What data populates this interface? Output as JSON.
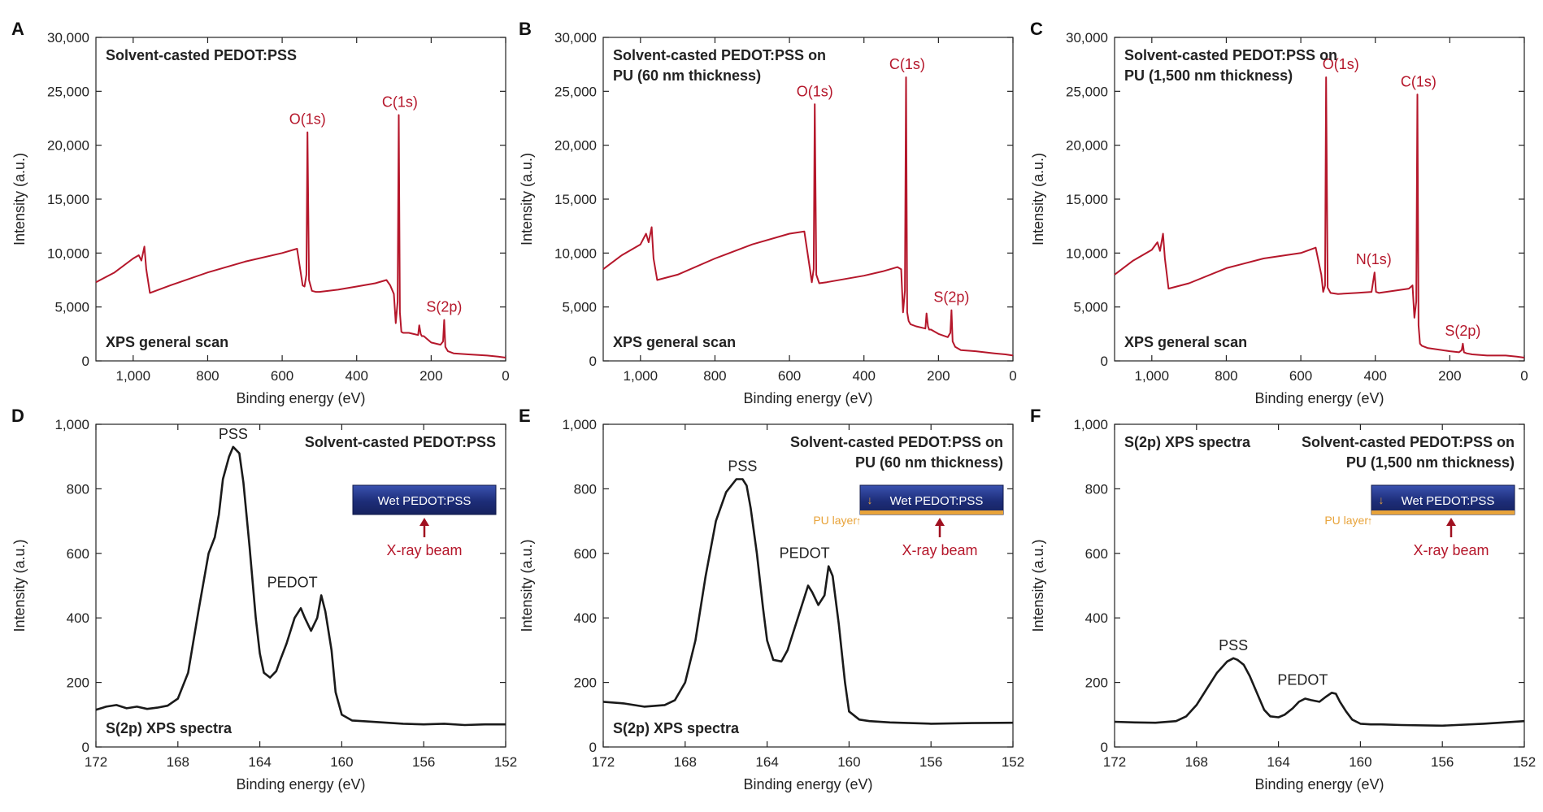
{
  "colors": {
    "xps_curve": "#b5172b",
    "peak_label": "#b5172b",
    "s2p_curve": "#1a1a1a",
    "pedot_bar_dark": "#1d2d78",
    "pedot_bar_light": "#3a52b0",
    "pu_layer": "#e8a33a",
    "xray_arrow": "#a01020",
    "axis": "#222222"
  },
  "chart_data": [
    {
      "panel": "A",
      "type": "line",
      "title": "Solvent-casted PEDOT:PSS",
      "annotation": "XPS general scan",
      "xlabel": "Binding energy (eV)",
      "ylabel": "Intensity (a.u.)",
      "xlim": [
        1100,
        0
      ],
      "ylim": [
        0,
        30000
      ],
      "xticks": [
        1000,
        800,
        600,
        400,
        200,
        0
      ],
      "xtick_labels": [
        "1,000",
        "800",
        "600",
        "400",
        "200",
        "0"
      ],
      "yticks": [
        0,
        5000,
        10000,
        15000,
        20000,
        25000,
        30000
      ],
      "ytick_labels": [
        "0",
        "5,000",
        "10,000",
        "15,000",
        "20,000",
        "25,000",
        "30,000"
      ],
      "series": [
        {
          "x": [
            1100,
            1050,
            1000,
            985,
            978,
            970,
            965,
            955,
            900,
            800,
            700,
            600,
            560,
            545,
            540,
            535,
            532,
            528,
            520,
            510,
            500,
            450,
            400,
            350,
            320,
            310,
            300,
            295,
            290,
            287,
            284,
            280,
            275,
            260,
            235,
            232,
            228,
            225,
            220,
            200,
            175,
            168,
            165,
            162,
            155,
            140,
            100,
            50,
            20,
            0
          ],
          "y": [
            7300,
            8200,
            9500,
            9800,
            9300,
            10600,
            8500,
            6300,
            7000,
            8200,
            9200,
            10000,
            10400,
            7000,
            6900,
            8000,
            21200,
            7500,
            6500,
            6400,
            6400,
            6600,
            6900,
            7200,
            7500,
            7000,
            6200,
            3500,
            5500,
            22800,
            4500,
            2700,
            2600,
            2600,
            2400,
            3300,
            2500,
            2300,
            2300,
            1700,
            1500,
            1800,
            3800,
            1300,
            900,
            700,
            600,
            500,
            400,
            300
          ]
        }
      ],
      "annotations": [
        {
          "text": "O(1s)",
          "x": 532,
          "y": 21200
        },
        {
          "text": "C(1s)",
          "x": 284,
          "y": 22800
        },
        {
          "text": "S(2p)",
          "x": 165,
          "y": 3800
        }
      ]
    },
    {
      "panel": "B",
      "type": "line",
      "title": "Solvent-casted PEDOT:PSS on PU (60 nm thickness)",
      "title_lines": [
        "Solvent-casted PEDOT:PSS on",
        "PU (60 nm thickness)"
      ],
      "annotation": "XPS general scan",
      "xlabel": "Binding energy (eV)",
      "ylabel": "Intensity (a.u.)",
      "xlim": [
        1100,
        0
      ],
      "ylim": [
        0,
        30000
      ],
      "xticks": [
        1000,
        800,
        600,
        400,
        200,
        0
      ],
      "xtick_labels": [
        "1,000",
        "800",
        "600",
        "400",
        "200",
        "0"
      ],
      "yticks": [
        0,
        5000,
        10000,
        15000,
        20000,
        25000,
        30000
      ],
      "ytick_labels": [
        "0",
        "5,000",
        "10,000",
        "15,000",
        "20,000",
        "25,000",
        "30,000"
      ],
      "series": [
        {
          "x": [
            1100,
            1050,
            1000,
            985,
            978,
            970,
            965,
            955,
            900,
            800,
            700,
            600,
            560,
            545,
            540,
            535,
            532,
            528,
            520,
            500,
            450,
            400,
            350,
            310,
            300,
            295,
            290,
            287,
            284,
            280,
            275,
            260,
            235,
            232,
            228,
            225,
            220,
            200,
            175,
            168,
            165,
            162,
            155,
            140,
            100,
            50,
            20,
            0
          ],
          "y": [
            8500,
            9800,
            10800,
            11800,
            11000,
            12400,
            9500,
            7500,
            8000,
            9500,
            10800,
            11800,
            12000,
            8500,
            7300,
            8500,
            23800,
            8000,
            7200,
            7300,
            7600,
            7900,
            8300,
            8700,
            8500,
            4500,
            6500,
            26300,
            4500,
            3700,
            3400,
            3200,
            3000,
            4400,
            3200,
            2900,
            2900,
            2500,
            2200,
            2600,
            4700,
            1800,
            1300,
            1000,
            900,
            700,
            600,
            500
          ]
        }
      ],
      "annotations": [
        {
          "text": "O(1s)",
          "x": 532,
          "y": 23800
        },
        {
          "text": "C(1s)",
          "x": 284,
          "y": 26300
        },
        {
          "text": "S(2p)",
          "x": 165,
          "y": 4700
        }
      ]
    },
    {
      "panel": "C",
      "type": "line",
      "title": "Solvent-casted PEDOT:PSS on PU (1,500 nm thickness)",
      "title_lines": [
        "Solvent-casted PEDOT:PSS on",
        "PU (1,500 nm thickness)"
      ],
      "annotation": "XPS general scan",
      "xlabel": "Binding energy (eV)",
      "ylabel": "Intensity (a.u.)",
      "xlim": [
        1100,
        0
      ],
      "ylim": [
        0,
        30000
      ],
      "xticks": [
        1000,
        800,
        600,
        400,
        200,
        0
      ],
      "xtick_labels": [
        "1,000",
        "800",
        "600",
        "400",
        "200",
        "0"
      ],
      "yticks": [
        0,
        5000,
        10000,
        15000,
        20000,
        25000,
        30000
      ],
      "ytick_labels": [
        "0",
        "5,000",
        "10,000",
        "15,000",
        "20,000",
        "25,000",
        "30,000"
      ],
      "series": [
        {
          "x": [
            1100,
            1050,
            1000,
            985,
            978,
            970,
            965,
            955,
            900,
            800,
            700,
            600,
            560,
            545,
            540,
            535,
            532,
            528,
            520,
            500,
            450,
            410,
            402,
            398,
            390,
            350,
            310,
            300,
            295,
            290,
            287,
            284,
            280,
            275,
            260,
            200,
            175,
            168,
            165,
            162,
            155,
            140,
            100,
            50,
            20,
            0
          ],
          "y": [
            8000,
            9300,
            10300,
            11000,
            10200,
            11800,
            9500,
            6700,
            7200,
            8600,
            9500,
            10000,
            10500,
            8000,
            6400,
            7000,
            26300,
            6800,
            6300,
            6200,
            6300,
            6400,
            8200,
            6400,
            6300,
            6500,
            6700,
            7000,
            4000,
            5500,
            24700,
            3300,
            1600,
            1400,
            1200,
            900,
            800,
            1000,
            1600,
            800,
            700,
            600,
            500,
            500,
            400,
            300
          ]
        }
      ],
      "annotations": [
        {
          "text": "O(1s)",
          "x": 532,
          "y": 26300
        },
        {
          "text": "N(1s)",
          "x": 400,
          "y": 8200
        },
        {
          "text": "C(1s)",
          "x": 284,
          "y": 24700
        },
        {
          "text": "S(2p)",
          "x": 165,
          "y": 1600
        }
      ]
    },
    {
      "panel": "D",
      "type": "line",
      "title": "Solvent-casted PEDOT:PSS",
      "annotation": "S(2p) XPS spectra",
      "xlabel": "Binding energy (eV)",
      "ylabel": "Intensity (a.u.)",
      "xlim": [
        172,
        152
      ],
      "ylim": [
        0,
        1000
      ],
      "xticks": [
        172,
        168,
        164,
        160,
        156,
        152
      ],
      "xtick_labels": [
        "172",
        "168",
        "164",
        "160",
        "156",
        "152"
      ],
      "yticks": [
        0,
        200,
        400,
        600,
        800,
        1000
      ],
      "ytick_labels": [
        "0",
        "200",
        "400",
        "600",
        "800",
        "1,000"
      ],
      "series": [
        {
          "x": [
            172,
            171.5,
            171,
            170.5,
            170,
            169.5,
            169,
            168.5,
            168,
            167.5,
            167,
            166.5,
            166.2,
            166,
            165.8,
            165.5,
            165.3,
            165,
            164.8,
            164.5,
            164.2,
            164,
            163.8,
            163.5,
            163.2,
            163,
            162.7,
            162.3,
            162,
            161.8,
            161.5,
            161.2,
            161,
            160.8,
            160.5,
            160.3,
            160,
            159.5,
            159,
            158,
            157,
            156,
            155,
            154,
            153,
            152
          ],
          "y": [
            115,
            125,
            130,
            120,
            125,
            118,
            122,
            128,
            150,
            230,
            420,
            600,
            650,
            720,
            830,
            900,
            930,
            910,
            820,
            620,
            400,
            290,
            230,
            215,
            235,
            270,
            320,
            400,
            430,
            400,
            360,
            400,
            470,
            420,
            300,
            170,
            100,
            82,
            80,
            76,
            72,
            70,
            72,
            68,
            70,
            70
          ]
        }
      ],
      "annotations": [
        {
          "text": "PSS",
          "x": 165.3,
          "y": 930
        },
        {
          "text": "PEDOT",
          "x": 161.3,
          "y": 470
        }
      ],
      "inset": {
        "bar_label": "Wet PEDOT:PSS",
        "beam_label": "X-ray beam"
      }
    },
    {
      "panel": "E",
      "type": "line",
      "title": "Solvent-casted PEDOT:PSS on PU (60 nm thickness)",
      "title_lines": [
        "Solvent-casted PEDOT:PSS on",
        "PU (60 nm thickness)"
      ],
      "annotation": "S(2p) XPS spectra",
      "xlabel": "Binding energy (eV)",
      "ylabel": "Intensity (a.u.)",
      "xlim": [
        172,
        152
      ],
      "ylim": [
        0,
        1000
      ],
      "xticks": [
        172,
        168,
        164,
        160,
        156,
        152
      ],
      "xtick_labels": [
        "172",
        "168",
        "164",
        "160",
        "156",
        "152"
      ],
      "yticks": [
        0,
        200,
        400,
        600,
        800,
        1000
      ],
      "ytick_labels": [
        "0",
        "200",
        "400",
        "600",
        "800",
        "1,000"
      ],
      "series": [
        {
          "x": [
            172,
            171,
            170,
            169,
            168.5,
            168,
            167.5,
            167,
            166.5,
            166,
            165.5,
            165.2,
            165,
            164.8,
            164.5,
            164.2,
            164,
            163.7,
            163.3,
            163,
            162.6,
            162.2,
            162,
            161.8,
            161.5,
            161.2,
            161,
            160.8,
            160.5,
            160.2,
            160,
            159.5,
            159,
            158,
            156,
            154,
            152
          ],
          "y": [
            140,
            135,
            125,
            130,
            145,
            200,
            330,
            530,
            700,
            790,
            830,
            830,
            810,
            740,
            600,
            430,
            330,
            270,
            265,
            300,
            380,
            460,
            500,
            480,
            440,
            470,
            560,
            530,
            380,
            200,
            110,
            85,
            80,
            76,
            72,
            74,
            75
          ]
        }
      ],
      "annotations": [
        {
          "text": "PSS",
          "x": 165.2,
          "y": 830
        },
        {
          "text": "PEDOT",
          "x": 161.3,
          "y": 560
        }
      ],
      "inset": {
        "bar_label": "Wet PEDOT:PSS",
        "layer_label": "PU layer",
        "beam_label": "X-ray beam"
      }
    },
    {
      "panel": "F",
      "type": "line",
      "title": "Solvent-casted PEDOT:PSS on PU (1,500 nm thickness)",
      "title_lines": [
        "Solvent-casted PEDOT:PSS on",
        "PU (1,500 nm thickness)"
      ],
      "annotation": "S(2p) XPS spectra",
      "xlabel": "Binding energy (eV)",
      "ylabel": "Intensity (a.u.)",
      "xlim": [
        172,
        152
      ],
      "ylim": [
        0,
        1000
      ],
      "xticks": [
        172,
        168,
        164,
        160,
        156,
        152
      ],
      "xtick_labels": [
        "172",
        "168",
        "164",
        "160",
        "156",
        "152"
      ],
      "yticks": [
        0,
        200,
        400,
        600,
        800,
        1000
      ],
      "ytick_labels": [
        "0",
        "200",
        "400",
        "600",
        "800",
        "1,000"
      ],
      "series": [
        {
          "x": [
            172,
            171,
            170,
            169,
            168.5,
            168,
            167.5,
            167,
            166.5,
            166.2,
            166,
            165.7,
            165.4,
            165,
            164.7,
            164.4,
            164,
            163.7,
            163.3,
            163,
            162.7,
            162.4,
            162,
            161.7,
            161.4,
            161.2,
            161,
            160.7,
            160.4,
            160,
            159.5,
            159,
            158,
            156,
            154,
            152
          ],
          "y": [
            78,
            76,
            75,
            80,
            95,
            130,
            180,
            230,
            265,
            275,
            270,
            255,
            220,
            160,
            115,
            95,
            92,
            100,
            120,
            140,
            150,
            145,
            140,
            155,
            168,
            165,
            140,
            110,
            85,
            72,
            70,
            70,
            68,
            66,
            72,
            80
          ]
        }
      ],
      "annotations": [
        {
          "text": "PSS",
          "x": 166.2,
          "y": 275
        },
        {
          "text": "PEDOT",
          "x": 162.5,
          "y": 168
        }
      ],
      "inset": {
        "bar_label": "Wet PEDOT:PSS",
        "layer_label": "PU layer",
        "beam_label": "X-ray beam"
      }
    }
  ]
}
